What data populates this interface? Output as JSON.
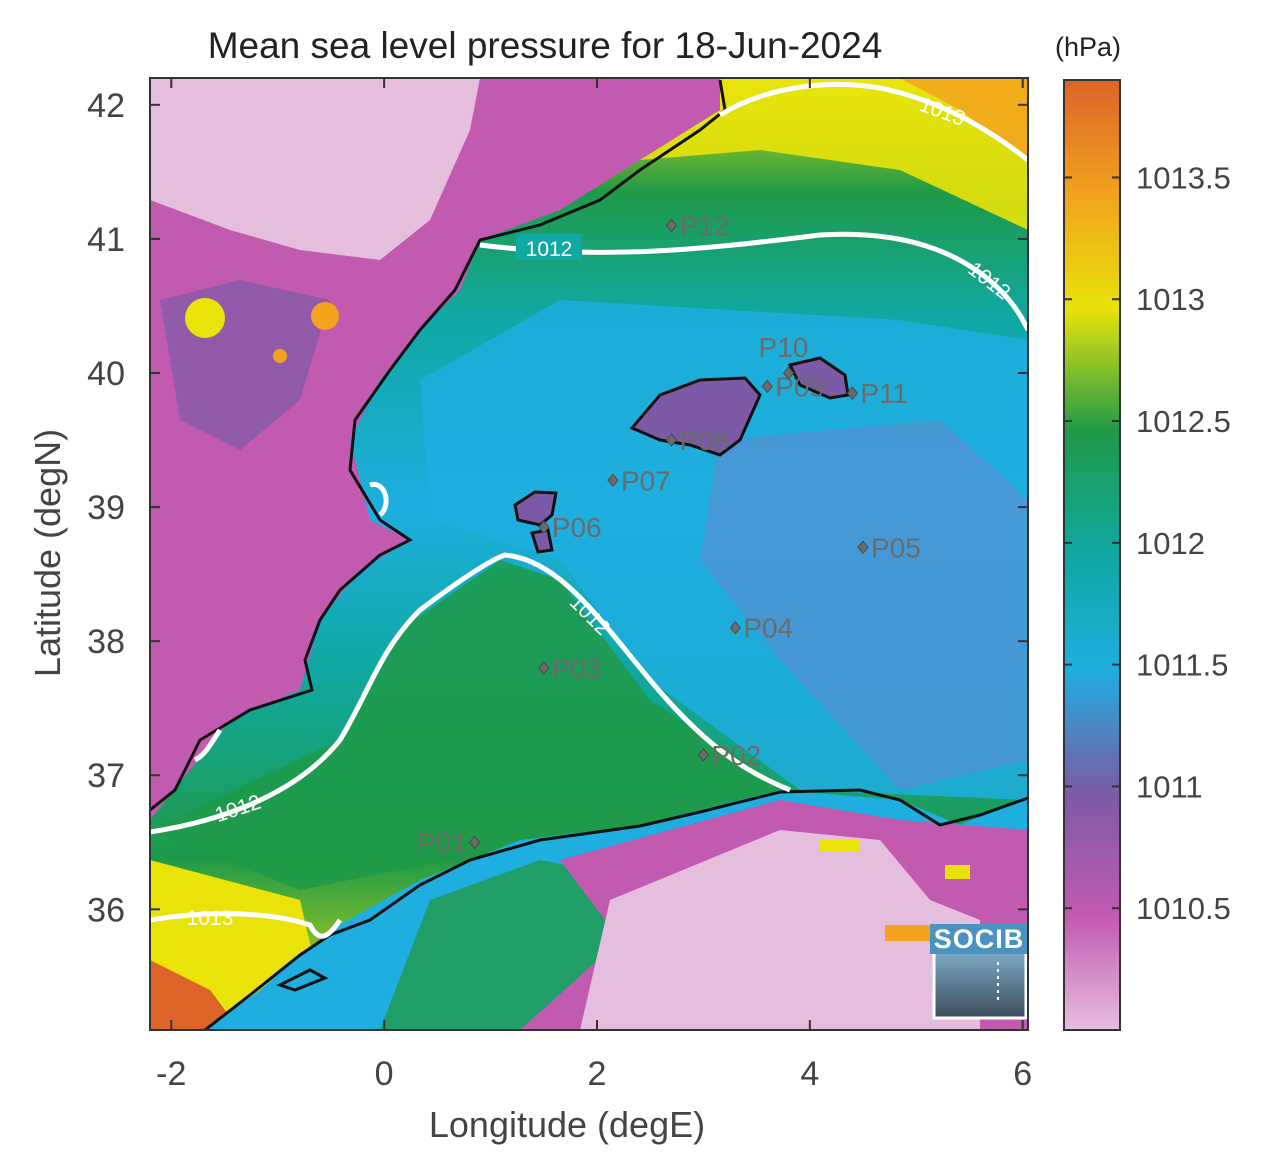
{
  "title": "Mean sea level pressure for 18-Jun-2024",
  "xlabel": "Longitude (degE)",
  "ylabel": "Latitude (degN)",
  "xticks": [
    "-2",
    "0",
    "2",
    "4",
    "6"
  ],
  "yticks": [
    "36",
    "37",
    "38",
    "39",
    "40",
    "41",
    "42"
  ],
  "colorbar": {
    "unit": "(hPa)",
    "ticks": [
      "1010.5",
      "1011",
      "1011.5",
      "1012",
      "1012.5",
      "1013",
      "1013.5"
    ],
    "range": [
      1010.0,
      1013.9
    ],
    "colors": [
      "#e6bedd",
      "#c25ab0",
      "#7c5aa6",
      "#1eaee0",
      "#0fa8a2",
      "#1f9a48",
      "#e9e30a",
      "#f2a21d",
      "#dc6429"
    ]
  },
  "contour_labels": [
    "1012",
    "1012",
    "1012",
    "1012",
    "1013",
    "1013"
  ],
  "logo": "SOCIB",
  "stations": [
    {
      "id": "P01",
      "lon": 0.85,
      "lat": 36.5
    },
    {
      "id": "P02",
      "lon": 3.0,
      "lat": 37.15
    },
    {
      "id": "P03",
      "lon": 1.5,
      "lat": 37.8
    },
    {
      "id": "P04",
      "lon": 3.3,
      "lat": 38.1
    },
    {
      "id": "P05",
      "lon": 4.5,
      "lat": 38.7
    },
    {
      "id": "P06",
      "lon": 1.5,
      "lat": 38.85
    },
    {
      "id": "P07",
      "lon": 2.15,
      "lat": 39.2
    },
    {
      "id": "P08",
      "lon": 2.7,
      "lat": 39.5
    },
    {
      "id": "P09",
      "lon": 3.6,
      "lat": 39.9
    },
    {
      "id": "P10",
      "lon": 3.8,
      "lat": 40.0
    },
    {
      "id": "P11",
      "lon": 4.4,
      "lat": 39.85
    },
    {
      "id": "P12",
      "lon": 2.7,
      "lat": 41.1
    }
  ],
  "chart_data": {
    "type": "heatmap",
    "title": "Mean sea level pressure for 18-Jun-2024",
    "xlabel": "Longitude (degE)",
    "ylabel": "Latitude (degN)",
    "xlim": [
      -2.2,
      6.05
    ],
    "ylim": [
      35.1,
      42.2
    ],
    "color_scale": "pressure (hPa)",
    "value_range": [
      1010.0,
      1013.9
    ],
    "contours": [
      1012,
      1013
    ]
  }
}
